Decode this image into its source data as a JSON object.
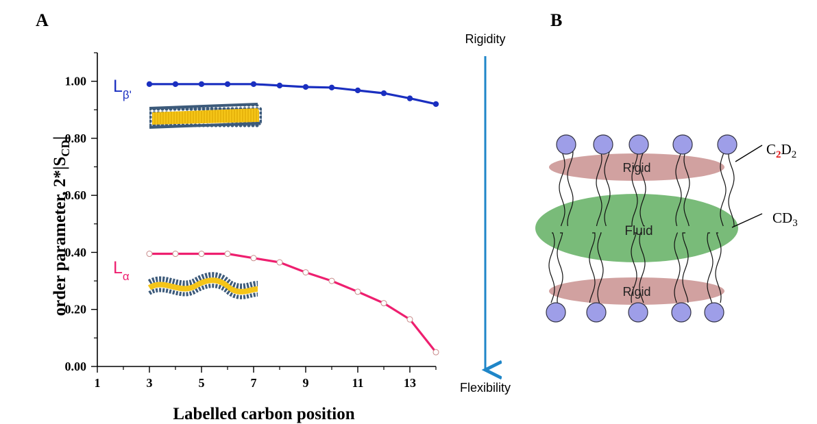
{
  "panel_a": {
    "label": "A"
  },
  "panel_b": {
    "label": "B"
  },
  "annotations": {
    "rigidity": "Rigidity",
    "flexibility": "Flexibility",
    "arrow_color": "#1f86c8"
  },
  "chart_data": {
    "type": "line",
    "xlabel": "Labelled carbon position",
    "ylabel": "order parameter, 2*|S",
    "ylabel_sub": "CD",
    "xlim": [
      1,
      14
    ],
    "ylim": [
      0,
      1.1
    ],
    "x_ticks": [
      1,
      3,
      5,
      7,
      9,
      11,
      13
    ],
    "y_ticks": [
      "0.00",
      "0.20",
      "0.40",
      "0.60",
      "0.80",
      "1.00"
    ],
    "series": [
      {
        "name": "L",
        "name_sub": "β'",
        "color": "#1a2fc0",
        "marker": "filled",
        "x": [
          3,
          4,
          5,
          6,
          7,
          8,
          9,
          10,
          11,
          12,
          13,
          14
        ],
        "y": [
          0.99,
          0.99,
          0.99,
          0.99,
          0.99,
          0.985,
          0.98,
          0.978,
          0.968,
          0.958,
          0.94,
          0.92
        ]
      },
      {
        "name": "L",
        "name_sub": "α",
        "color": "#ee1f6f",
        "marker": "open",
        "x": [
          3,
          4,
          5,
          6,
          7,
          8,
          9,
          10,
          11,
          12,
          13,
          14
        ],
        "y": [
          0.395,
          0.395,
          0.395,
          0.395,
          0.38,
          0.365,
          0.33,
          0.3,
          0.262,
          0.222,
          0.165,
          0.05
        ]
      }
    ]
  },
  "diagram": {
    "regions": [
      {
        "label": "Rigid",
        "color": "#c9918f"
      },
      {
        "label": "Fluid",
        "color": "#6ab46a"
      },
      {
        "label": "Rigid",
        "color": "#c9918f"
      }
    ],
    "head_color": "#9e9ee8",
    "callouts": [
      {
        "pre": "C",
        "sub1": "2",
        "mid": "D",
        "sub2": "2",
        "sub1_color": "#e01010"
      },
      {
        "pre": "CD",
        "sub1": "3"
      }
    ]
  }
}
